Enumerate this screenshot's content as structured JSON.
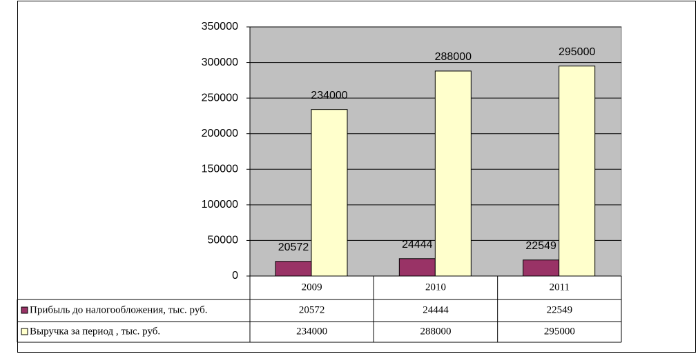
{
  "chart_data": {
    "type": "bar",
    "categories": [
      "2009",
      "2010",
      "2011"
    ],
    "series": [
      {
        "name": "Прибыль до налогообложения, тыс. руб.",
        "color": "#993366",
        "values": [
          20572,
          24444,
          22549
        ]
      },
      {
        "name": "Выручка за период , тыс. руб.",
        "color": "#ffffcc",
        "values": [
          234000,
          288000,
          295000
        ]
      }
    ],
    "ylim": [
      0,
      350000
    ],
    "yticks": [
      0,
      50000,
      100000,
      150000,
      200000,
      250000,
      300000,
      350000
    ],
    "grid": true,
    "plot_background": "#c0c0c0"
  }
}
